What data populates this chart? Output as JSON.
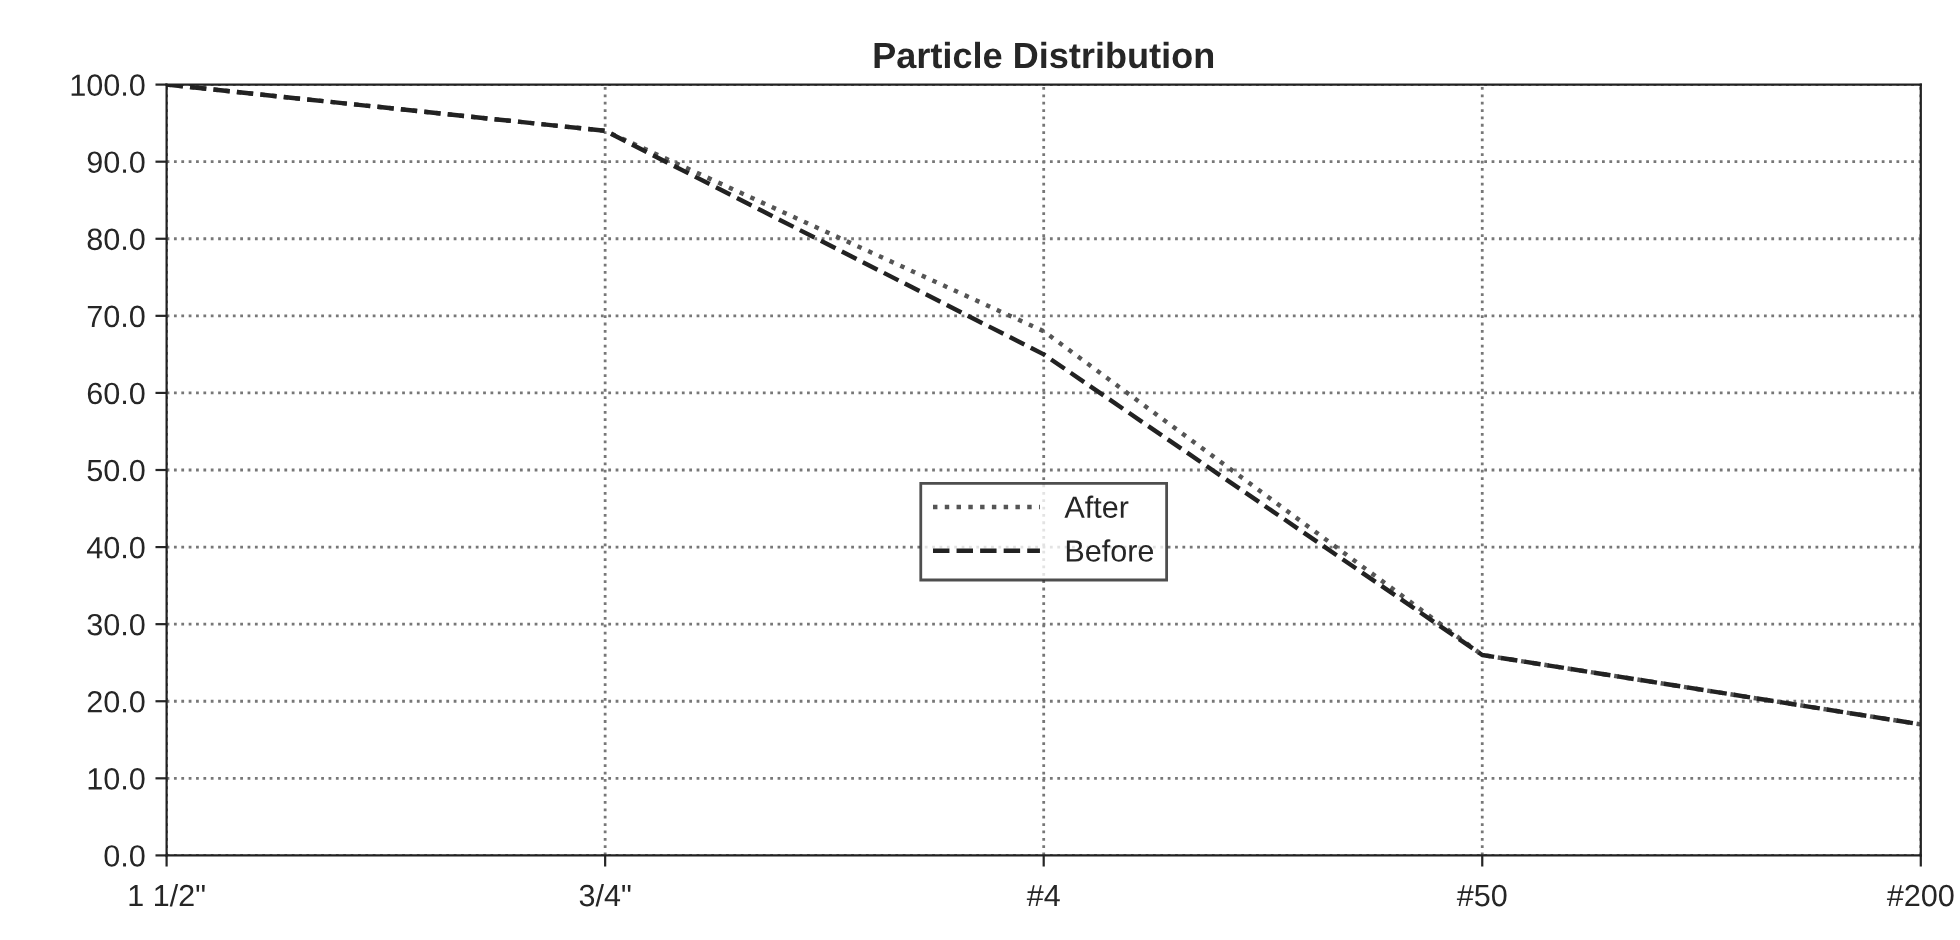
{
  "chart_data": {
    "type": "line",
    "title": "Particle Distribution",
    "categories": [
      "1 1/2\"",
      "3/4\"",
      "#4",
      "#50",
      "#200"
    ],
    "series": [
      {
        "name": "After",
        "color": "#555555",
        "values": [
          100,
          94,
          68,
          26,
          17
        ],
        "line_style": "dotted"
      },
      {
        "name": "Before",
        "color": "#222222",
        "values": [
          100,
          94,
          65,
          26,
          17
        ],
        "line_style": "dashed"
      }
    ],
    "ylim": [
      0,
      100
    ],
    "yticks": [
      {
        "value": 0,
        "label": "0.0"
      },
      {
        "value": 10,
        "label": "10.0"
      },
      {
        "value": 20,
        "label": "20.0"
      },
      {
        "value": 30,
        "label": "30.0"
      },
      {
        "value": 40,
        "label": "40.0"
      },
      {
        "value": 50,
        "label": "50.0"
      },
      {
        "value": 60,
        "label": "60.0"
      },
      {
        "value": 70,
        "label": "70.0"
      },
      {
        "value": 80,
        "label": "80.0"
      },
      {
        "value": 90,
        "label": "90.0"
      },
      {
        "value": 100,
        "label": "100.0"
      }
    ],
    "grid": true,
    "legend": "center",
    "marker": "none"
  }
}
